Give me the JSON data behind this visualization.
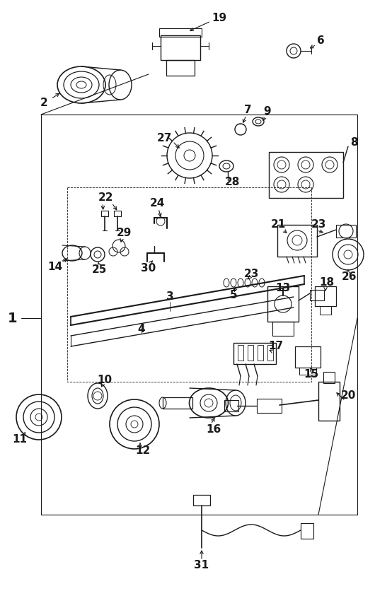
{
  "bg_color": "#ffffff",
  "line_color": "#1a1a1a",
  "fig_width": 5.3,
  "fig_height": 8.36,
  "dpi": 100
}
